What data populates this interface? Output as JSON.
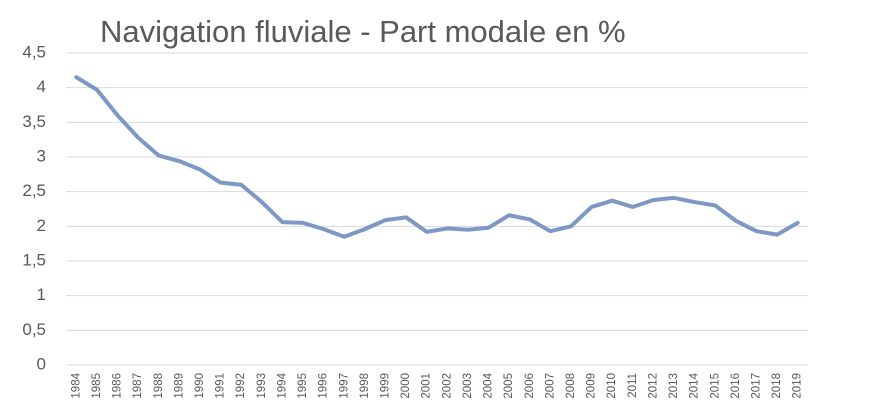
{
  "chart_data": {
    "type": "line",
    "title": "Navigation fluviale - Part modale en %",
    "categories": [
      "1984",
      "1985",
      "1986",
      "1987",
      "1988",
      "1989",
      "1990",
      "1991",
      "1992",
      "1993",
      "1994",
      "1995",
      "1996",
      "1997",
      "1998",
      "1999",
      "2000",
      "2001",
      "2002",
      "2003",
      "2004",
      "2005",
      "2006",
      "2007",
      "2008",
      "2009",
      "2010",
      "2011",
      "2012",
      "2013",
      "2014",
      "2015",
      "2016",
      "2017",
      "2018",
      "2019"
    ],
    "values": [
      4.15,
      3.97,
      3.6,
      3.28,
      3.02,
      2.94,
      2.82,
      2.63,
      2.6,
      2.35,
      2.06,
      2.05,
      1.96,
      1.85,
      1.96,
      2.09,
      2.13,
      1.92,
      1.97,
      1.95,
      1.98,
      2.16,
      2.1,
      1.93,
      2.0,
      2.28,
      2.37,
      2.28,
      2.38,
      2.41,
      2.35,
      2.3,
      2.08,
      1.93,
      1.88,
      2.05
    ],
    "color": "#7d98c4",
    "ylim": [
      0,
      4.5
    ],
    "yticks": [
      0,
      {
        "value": 0.5,
        "label": "0,5"
      },
      1,
      {
        "value": 1.5,
        "label": "1,5"
      },
      2,
      {
        "value": 2.5,
        "label": "2,5"
      },
      3,
      {
        "value": 3.5,
        "label": "3,5"
      },
      4,
      {
        "value": 4.5,
        "label": "4,5"
      }
    ],
    "grid": true
  }
}
